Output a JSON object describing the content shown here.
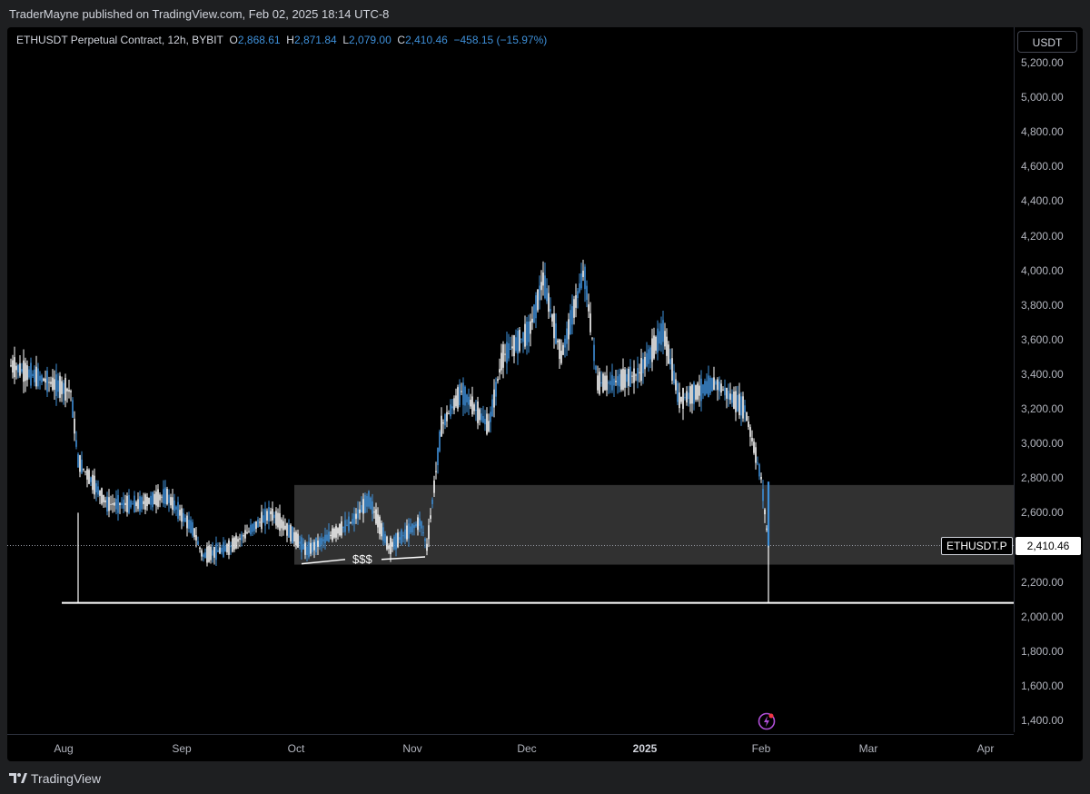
{
  "header": {
    "published_by": "TraderMayne published on TradingView.com, Feb 02, 2025 18:14 UTC-8"
  },
  "legend": {
    "symbol": "ETHUSDT Perpetual Contract, 12h, BYBIT",
    "open_key": "O",
    "open": "2,868.61",
    "high_key": "H",
    "high": "2,871.84",
    "low_key": "L",
    "low": "2,079.00",
    "close_key": "C",
    "close": "2,410.46",
    "change": "−458.15 (−15.97%)"
  },
  "price_axis": {
    "currency": "USDT",
    "ticks": [
      "5,200.00",
      "5,000.00",
      "4,800.00",
      "4,600.00",
      "4,400.00",
      "4,200.00",
      "4,000.00",
      "3,800.00",
      "3,600.00",
      "3,400.00",
      "3,200.00",
      "3,000.00",
      "2,800.00",
      "2,600.00",
      "2,200.00",
      "2,000.00",
      "1,800.00",
      "1,600.00",
      "1,400.00"
    ],
    "last_price_label": "2,410.46",
    "symbol_label": "ETHUSDT.P"
  },
  "time_axis": {
    "ticks": [
      {
        "label": "Aug",
        "bold": false
      },
      {
        "label": "Sep",
        "bold": false
      },
      {
        "label": "Oct",
        "bold": false
      },
      {
        "label": "Nov",
        "bold": false
      },
      {
        "label": "Dec",
        "bold": false
      },
      {
        "label": "2025",
        "bold": true
      },
      {
        "label": "Feb",
        "bold": false
      },
      {
        "label": "Mar",
        "bold": false
      },
      {
        "label": "Apr",
        "bold": false
      }
    ]
  },
  "annotations": {
    "liquidity_label": "$$$",
    "support_level": 2079,
    "zone_low": 2300,
    "zone_high": 2760
  },
  "colors": {
    "candle": "#ffffff",
    "candle_down": "#3e8fd8",
    "zone": "#3a3a3a",
    "last_price_line": "#9598a1",
    "background": "#000000"
  },
  "footer": {
    "brand": "TradingView"
  },
  "chart_data": {
    "type": "line",
    "title": "",
    "xlabel": "",
    "ylabel": "",
    "ylim": [
      1300,
      5300
    ],
    "x": [
      "Jul 26",
      "Aug 1",
      "Aug 5",
      "Aug 10",
      "Aug 20",
      "Aug 25",
      "Sep 1",
      "Sep 7",
      "Sep 15",
      "Sep 25",
      "Oct 1",
      "Oct 5",
      "Oct 15",
      "Oct 20",
      "Oct 25",
      "Oct 30",
      "Nov 3",
      "Nov 6",
      "Nov 12",
      "Nov 20",
      "Nov 25",
      "Dec 1",
      "Dec 5",
      "Dec 10",
      "Dec 16",
      "Dec 20",
      "Dec 25",
      "Jan 1",
      "Jan 6",
      "Jan 10",
      "Jan 15",
      "Jan 20",
      "Jan 25",
      "Jan 30",
      "Feb 1",
      "Feb 2"
    ],
    "series": [
      {
        "values": [
          3450,
          3300,
          2900,
          2650,
          2650,
          2700,
          2500,
          2350,
          2400,
          2600,
          2450,
          2380,
          2550,
          2680,
          2400,
          2550,
          2400,
          3100,
          3300,
          3100,
          3500,
          3650,
          3950,
          3500,
          4000,
          3350,
          3350,
          3400,
          3650,
          3250,
          3300,
          3350,
          3250,
          3200,
          2800,
          2410
        ]
      }
    ]
  }
}
